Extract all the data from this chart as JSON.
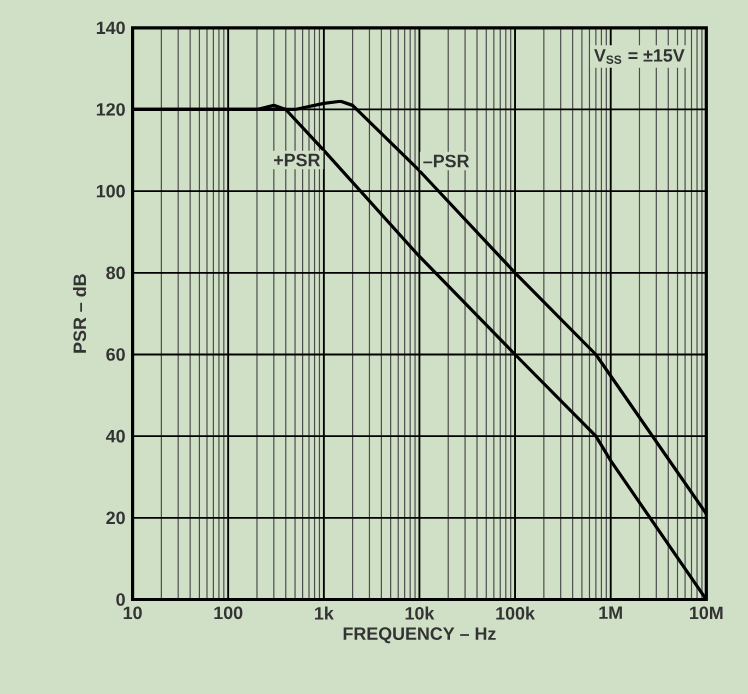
{
  "chart_data": {
    "type": "line",
    "xlabel": "FREQUENCY – Hz",
    "ylabel": "PSR  – dB",
    "log": "x",
    "grid": true,
    "xlim": [
      10,
      10000000
    ],
    "ylim": [
      0,
      140
    ],
    "xticks": [
      10,
      100,
      {
        "value": 1000,
        "label": "1k"
      },
      {
        "value": 10000,
        "label": "10k"
      },
      {
        "value": 100000,
        "label": "100k"
      },
      {
        "value": 1000000,
        "label": "1M"
      },
      {
        "value": 10000000,
        "label": "10M"
      }
    ],
    "yticks": [
      0,
      20,
      40,
      60,
      80,
      100,
      120,
      140
    ],
    "annotations": [
      "V$_{SS}$ = ±15V"
    ],
    "series": [
      {
        "name": "+PSR",
        "color": "#000000",
        "x": [
          10,
          200,
          300,
          400,
          1000,
          10000,
          100000,
          700000,
          1000000,
          10000000
        ],
        "values": [
          120,
          120,
          121,
          120,
          110,
          84,
          60,
          40,
          34,
          0
        ]
      },
      {
        "name": "–PSR",
        "color": "#000000",
        "x": [
          10,
          500,
          1000,
          1500,
          2000,
          10000,
          100000,
          700000,
          10000000
        ],
        "values": [
          120,
          120,
          121.5,
          122,
          121,
          105,
          80,
          60,
          21
        ]
      }
    ]
  }
}
